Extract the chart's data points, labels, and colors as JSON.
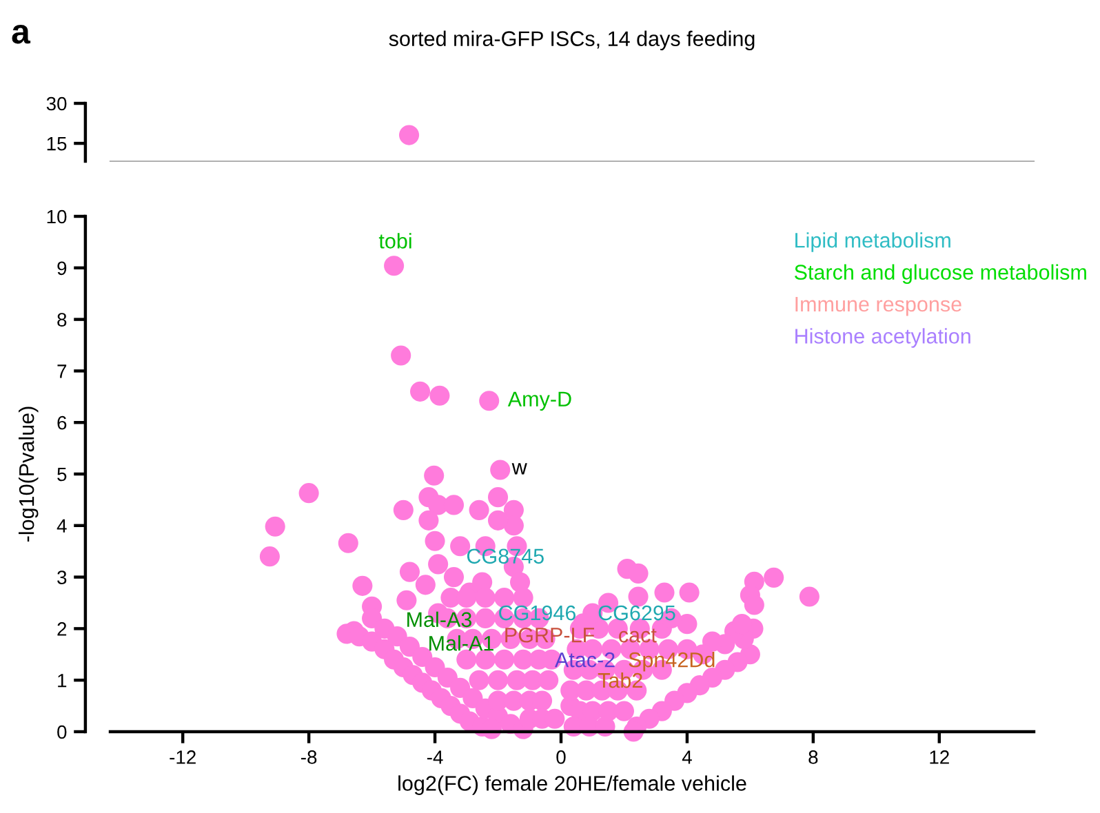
{
  "chart_data": [
    {
      "type": "scatter",
      "title": "sorted mira-GFP ISCs, 14 days feeding",
      "annotations": [
        "a"
      ],
      "xlim": [
        -14.3,
        15.0
      ],
      "ylim": [
        8.3,
        30
      ],
      "yticks": [
        15,
        30
      ],
      "tick_labels": "y",
      "marker": "circle",
      "series": [
        {
          "color": "#ff7bdc",
          "x": [
            -4.82
          ],
          "values": [
            18.1
          ]
        }
      ]
    },
    {
      "type": "scatter",
      "xlabel": "log2(FC) female 20HE/female vehicle",
      "ylabel": "-log10(Pvalue)",
      "xlim": [
        -14.3,
        15.0
      ],
      "ylim": [
        0,
        10
      ],
      "xticks": [
        -12,
        -8,
        -4,
        0,
        4,
        8,
        12
      ],
      "yticks": [
        0,
        1,
        2,
        3,
        4,
        5,
        6,
        7,
        8,
        9,
        10
      ],
      "marker": "circle",
      "series": [
        {
          "color": "#ff7bdc",
          "x": [
            -5.3,
            -5.08,
            -4.47,
            -3.85,
            -2.28,
            -1.93,
            -4.03,
            -8.0,
            -9.07,
            -9.24,
            -6.75,
            -6.3,
            -6.0,
            -6.57,
            -1.5,
            -1.5,
            -1.4,
            -1.5,
            -1.3,
            -2.0,
            -2.4,
            -2.6,
            -2.0,
            -4.2,
            -3.9,
            -3.4,
            -4.2,
            -3.2,
            -4.0,
            -3.9,
            -3.4,
            -5.0,
            -4.8,
            -4.3,
            -4.9,
            -3.9,
            -2.9,
            -2.5,
            -6.8,
            -6.4,
            -6.0,
            -5.6,
            -5.3,
            -5.0,
            -4.7,
            -4.4,
            -4.1,
            -3.8,
            -3.5,
            -3.2,
            -2.9,
            -2.5,
            -6.0,
            -5.6,
            -5.2,
            -4.8,
            -4.4,
            -4.0,
            -3.6,
            -3.2,
            -2.8,
            -2.4,
            -2.0,
            -1.6,
            -1.2,
            -3.5,
            -3.0,
            -2.4,
            -1.8,
            -1.2,
            -3.6,
            -3.0,
            -2.4,
            -1.8,
            -1.2,
            -0.7,
            -3.3,
            -2.8,
            -2.2,
            -1.6,
            -1.0,
            -0.5,
            -3.0,
            -2.4,
            -1.8,
            -1.2,
            -0.7,
            -0.3,
            -2.6,
            -2.0,
            -1.4,
            -0.9,
            -0.4,
            -2.0,
            -1.5,
            -1.0,
            -0.6,
            -1.0,
            -0.6,
            -0.2,
            0.3,
            6.0,
            5.6,
            5.2,
            4.8,
            4.4,
            4.0,
            3.6,
            3.2,
            2.8,
            2.4,
            6.1,
            5.8,
            5.5,
            5.2,
            4.8,
            4.5,
            0.6,
            1.2,
            1.8,
            2.5,
            3.2,
            0.5,
            1.0,
            1.6,
            2.2,
            2.8,
            3.4,
            4.0,
            0.4,
            0.9,
            1.4,
            2.0,
            2.6,
            3.2,
            0.3,
            0.8,
            1.3,
            1.8,
            2.4,
            0.6,
            1.0,
            1.5,
            2.0,
            0.4,
            0.9,
            1.4,
            2.1,
            2.45,
            3.28,
            4.07,
            6.13,
            6.75,
            7.88,
            6.0,
            6.13,
            5.74,
            4.0,
            2.45,
            1.0,
            1.5,
            3.5,
            0.7,
            2.3,
            -2.2
          ],
          "values": [
            9.04,
            7.3,
            6.6,
            6.52,
            6.42,
            5.08,
            4.97,
            4.63,
            3.98,
            3.4,
            3.66,
            2.83,
            2.43,
            1.95,
            4.3,
            4.0,
            3.6,
            3.2,
            2.9,
            4.1,
            3.6,
            4.3,
            4.55,
            4.55,
            4.4,
            4.4,
            4.1,
            3.6,
            3.7,
            3.25,
            3.0,
            4.3,
            3.1,
            2.85,
            2.55,
            2.3,
            2.7,
            2.9,
            1.9,
            1.85,
            1.75,
            1.6,
            1.4,
            1.25,
            1.1,
            0.95,
            0.8,
            0.65,
            0.5,
            0.35,
            0.2,
            0.1,
            2.2,
            2.0,
            1.85,
            1.65,
            1.45,
            1.25,
            1.05,
            0.85,
            0.65,
            0.45,
            0.3,
            0.15,
            0.05,
            2.6,
            2.6,
            2.6,
            2.6,
            2.6,
            2.2,
            2.2,
            2.2,
            2.2,
            2.2,
            2.2,
            1.8,
            1.8,
            1.8,
            1.8,
            1.8,
            1.8,
            1.4,
            1.4,
            1.4,
            1.4,
            1.4,
            1.4,
            1.0,
            1.0,
            1.0,
            1.0,
            1.0,
            0.6,
            0.6,
            0.6,
            0.6,
            0.25,
            0.25,
            0.25,
            0.5,
            1.5,
            1.35,
            1.2,
            1.05,
            0.9,
            0.75,
            0.6,
            0.4,
            0.25,
            0.1,
            2.0,
            1.8,
            1.95,
            1.7,
            1.75,
            1.5,
            2.0,
            2.0,
            2.0,
            2.0,
            2.0,
            1.6,
            1.6,
            1.6,
            1.6,
            1.6,
            1.6,
            1.6,
            1.2,
            1.2,
            1.2,
            1.2,
            1.2,
            1.2,
            0.8,
            0.8,
            0.8,
            0.8,
            0.8,
            0.4,
            0.4,
            0.4,
            0.4,
            0.1,
            0.1,
            0.1,
            3.16,
            3.07,
            2.7,
            2.7,
            2.91,
            2.99,
            2.62,
            2.65,
            2.46,
            2.09,
            2.09,
            2.62,
            2.3,
            2.5,
            2.2,
            2.1,
            0.0,
            0.05
          ]
        }
      ],
      "annotations": [
        {
          "text": "tobi",
          "x": -5.3,
          "y": 9.04
        },
        {
          "text": "Amy-D",
          "x": -1.75,
          "y": 6.42
        },
        {
          "text": "w",
          "x": -1.62,
          "y": 5.1
        },
        {
          "text": "CG8745",
          "x": -3.07,
          "y": 3.37
        },
        {
          "text": "CG1946",
          "x": -2.06,
          "y": 2.27
        },
        {
          "text": "CG6295",
          "x": 1.1,
          "y": 2.27
        },
        {
          "text": "Mal-A3",
          "x": -4.99,
          "y": 2.14
        },
        {
          "text": "Mal-A1",
          "x": -4.29,
          "y": 1.68
        },
        {
          "text": "PGRP-LF",
          "x": -1.88,
          "y": 1.84
        },
        {
          "text": "cact",
          "x": 1.75,
          "y": 1.84
        },
        {
          "text": "Atac-2",
          "x": -0.26,
          "y": 1.36
        },
        {
          "text": "Spn42Dd",
          "x": 2.06,
          "y": 1.36
        },
        {
          "text": "Tab2",
          "x": 1.1,
          "y": 0.96
        },
        "Lipid metabolism",
        "Starch and glucose metabolism",
        "Immune response",
        "Histone acetylation"
      ]
    }
  ]
}
